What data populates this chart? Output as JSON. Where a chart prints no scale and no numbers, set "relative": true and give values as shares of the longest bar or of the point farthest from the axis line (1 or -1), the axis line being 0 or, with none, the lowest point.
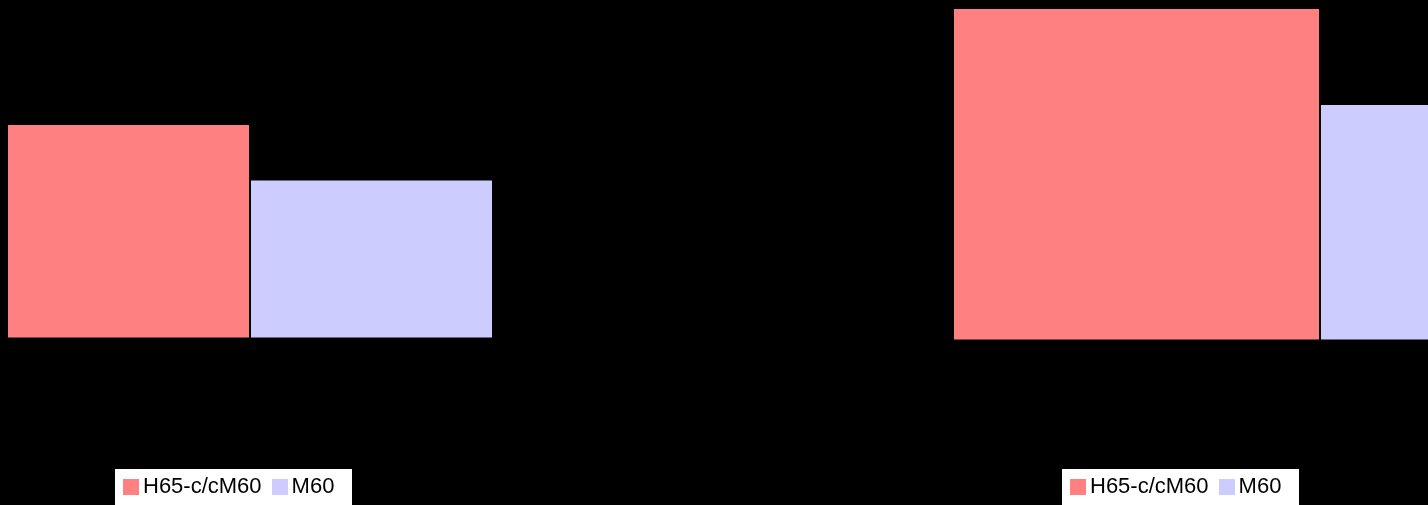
{
  "chart_data": [
    {
      "type": "bar",
      "relative": true,
      "categories": [
        null
      ],
      "legend": "bottom",
      "series": [
        {
          "name": "H65-c/cM60",
          "color": "#ff8080",
          "values": [
            1
          ]
        },
        {
          "name": "M60",
          "color": "#ccccff",
          "values": [
            0.74
          ]
        }
      ]
    },
    {
      "type": "bar",
      "relative": true,
      "categories": [
        null
      ],
      "legend": "bottom",
      "series": [
        {
          "name": "H65-c/cM60",
          "color": "#ff8080",
          "values": [
            1
          ]
        },
        {
          "name": "M60",
          "color": "#ccccff",
          "values": [
            0.71
          ]
        }
      ]
    }
  ]
}
